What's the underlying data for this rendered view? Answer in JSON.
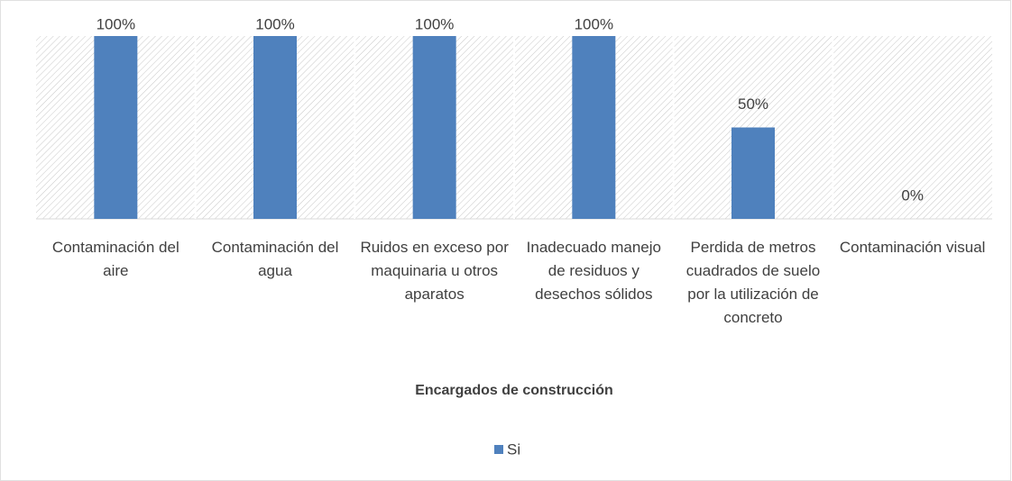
{
  "chart_data": {
    "type": "bar",
    "categories": [
      "Contaminación del aire",
      "Contaminación del agua",
      "Ruidos en exceso por maquinaria u otros aparatos",
      "Inadecuado manejo de residuos y desechos sólidos",
      "Perdida de metros cuadrados de suelo por la utilización de concreto",
      "Contaminación visual"
    ],
    "series": [
      {
        "name": "Si",
        "color": "#4f81bd",
        "values": [
          100,
          100,
          100,
          100,
          50,
          0
        ],
        "value_labels": [
          "100%",
          "100%",
          "100%",
          "100%",
          "50%",
          "0%"
        ]
      }
    ],
    "xlabel": "Encargados de construcción",
    "ylim": [
      0,
      100
    ],
    "legend": "bottom"
  }
}
